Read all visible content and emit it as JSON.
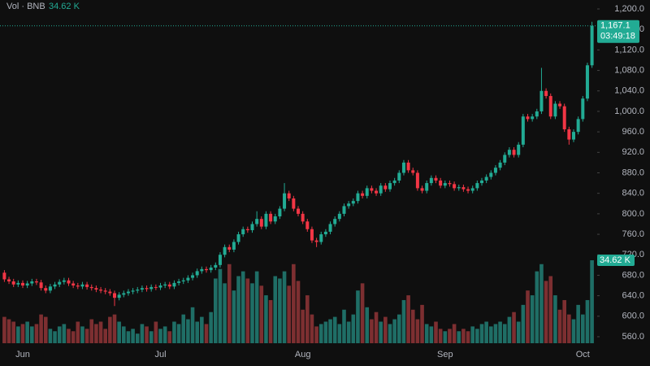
{
  "chart_data": {
    "type": "candlestick",
    "volume_title": "Vol · BNB",
    "volume_label": "34.62 K",
    "last_price_label": "1,167.1",
    "countdown": "03:49:18",
    "up_color": "#22ab94",
    "down_color": "#f23645",
    "up_volume_color": "#1f6e66",
    "down_volume_color": "#7d2f31",
    "categories": [
      null,
      null,
      null,
      null,
      "Jun",
      null,
      null,
      null,
      null,
      null,
      null,
      null,
      null,
      null,
      null,
      null,
      null,
      null,
      null,
      null,
      null,
      null,
      null,
      null,
      null,
      null,
      null,
      null,
      null,
      null,
      null,
      null,
      null,
      null,
      "Jul",
      null,
      null,
      null,
      null,
      null,
      null,
      null,
      null,
      null,
      null,
      null,
      null,
      null,
      null,
      null,
      null,
      null,
      null,
      null,
      null,
      null,
      null,
      null,
      null,
      null,
      null,
      null,
      null,
      null,
      null,
      "Aug",
      null,
      null,
      null,
      null,
      null,
      null,
      null,
      null,
      null,
      null,
      null,
      null,
      null,
      null,
      null,
      null,
      null,
      null,
      null,
      null,
      null,
      null,
      null,
      null,
      null,
      null,
      null,
      null,
      null,
      null,
      "Sep",
      null,
      null,
      null,
      null,
      null,
      null,
      null,
      null,
      null,
      null,
      null,
      null,
      null,
      null,
      null,
      null,
      null,
      null,
      null,
      null,
      null,
      null,
      null,
      null,
      null,
      null,
      null,
      null,
      null,
      "Oct",
      null,
      null
    ],
    "open": [
      685,
      672,
      668,
      662,
      665,
      660,
      664,
      668,
      666,
      655,
      650,
      658,
      662,
      667,
      670,
      664,
      660,
      658,
      662,
      657,
      655,
      652,
      650,
      648,
      645,
      636,
      642,
      645,
      648,
      650,
      652,
      655,
      653,
      657,
      656,
      660,
      662,
      658,
      665,
      668,
      670,
      675,
      680,
      688,
      692,
      690,
      695,
      700,
      720,
      735,
      730,
      745,
      760,
      770,
      768,
      780,
      790,
      775,
      800,
      785,
      795,
      810,
      840,
      830,
      810,
      800,
      785,
      770,
      748,
      745,
      760,
      765,
      780,
      790,
      800,
      815,
      820,
      825,
      840,
      835,
      850,
      845,
      840,
      855,
      848,
      860,
      865,
      880,
      900,
      885,
      880,
      850,
      845,
      860,
      870,
      865,
      855,
      860,
      858,
      850,
      852,
      848,
      845,
      850,
      860,
      865,
      872,
      880,
      890,
      900,
      915,
      925,
      915,
      935,
      990,
      985,
      990,
      1000,
      1040,
      1030,
      990,
      1015,
      1010,
      965,
      945,
      960,
      985,
      1025,
      1090
    ],
    "high": [
      690,
      677,
      673,
      670,
      670,
      669,
      673,
      673,
      671,
      660,
      663,
      667,
      672,
      675,
      675,
      669,
      665,
      667,
      667,
      662,
      660,
      657,
      655,
      653,
      650,
      647,
      650,
      653,
      655,
      657,
      660,
      660,
      662,
      662,
      665,
      667,
      667,
      670,
      673,
      675,
      680,
      685,
      693,
      697,
      697,
      700,
      705,
      725,
      740,
      740,
      750,
      765,
      775,
      775,
      785,
      805,
      795,
      805,
      805,
      800,
      815,
      860,
      845,
      835,
      815,
      805,
      790,
      775,
      753,
      765,
      770,
      785,
      795,
      805,
      820,
      825,
      830,
      845,
      845,
      855,
      855,
      850,
      860,
      860,
      865,
      870,
      885,
      905,
      905,
      890,
      885,
      855,
      865,
      875,
      875,
      870,
      865,
      865,
      863,
      857,
      857,
      853,
      855,
      865,
      870,
      877,
      885,
      895,
      905,
      920,
      930,
      930,
      940,
      995,
      995,
      995,
      1005,
      1085,
      1045,
      1035,
      1020,
      1020,
      1015,
      970,
      965,
      990,
      1030,
      1095,
      1175
    ],
    "low": [
      667,
      663,
      657,
      657,
      655,
      655,
      659,
      661,
      650,
      645,
      645,
      653,
      657,
      662,
      659,
      655,
      653,
      653,
      652,
      650,
      647,
      645,
      643,
      640,
      620,
      631,
      637,
      640,
      643,
      645,
      647,
      648,
      648,
      651,
      651,
      655,
      653,
      653,
      660,
      663,
      665,
      670,
      675,
      683,
      685,
      685,
      690,
      695,
      715,
      725,
      725,
      740,
      755,
      763,
      763,
      775,
      770,
      770,
      780,
      780,
      790,
      805,
      825,
      805,
      795,
      780,
      765,
      743,
      735,
      740,
      755,
      760,
      775,
      785,
      795,
      810,
      815,
      820,
      830,
      830,
      840,
      835,
      835,
      843,
      843,
      855,
      860,
      875,
      880,
      875,
      845,
      840,
      840,
      855,
      860,
      850,
      850,
      853,
      845,
      845,
      843,
      840,
      840,
      845,
      855,
      860,
      867,
      875,
      885,
      895,
      910,
      910,
      910,
      930,
      980,
      980,
      985,
      995,
      1025,
      985,
      985,
      1005,
      960,
      935,
      940,
      955,
      980,
      1020,
      1085
    ],
    "close": [
      672,
      668,
      662,
      665,
      660,
      664,
      668,
      666,
      655,
      650,
      658,
      662,
      667,
      670,
      664,
      660,
      658,
      662,
      657,
      655,
      652,
      650,
      648,
      645,
      636,
      642,
      645,
      648,
      650,
      652,
      655,
      653,
      657,
      656,
      660,
      662,
      658,
      665,
      668,
      670,
      675,
      680,
      688,
      692,
      690,
      695,
      700,
      720,
      735,
      730,
      745,
      760,
      770,
      768,
      780,
      790,
      775,
      800,
      785,
      795,
      810,
      840,
      830,
      810,
      800,
      785,
      770,
      748,
      745,
      760,
      765,
      780,
      790,
      800,
      815,
      820,
      825,
      840,
      835,
      850,
      845,
      840,
      855,
      848,
      860,
      865,
      880,
      900,
      885,
      880,
      850,
      845,
      860,
      870,
      865,
      855,
      860,
      858,
      850,
      852,
      848,
      845,
      850,
      860,
      865,
      872,
      880,
      890,
      900,
      915,
      925,
      915,
      935,
      990,
      985,
      990,
      1000,
      1040,
      1030,
      990,
      1015,
      1010,
      965,
      945,
      960,
      985,
      1025,
      1090,
      1167.1
    ],
    "volume": [
      11,
      10,
      9,
      7,
      8,
      9,
      7,
      8,
      12,
      11,
      6,
      5,
      7,
      8,
      6,
      5,
      9,
      7,
      6,
      10,
      8,
      9,
      6,
      11,
      12,
      9,
      7,
      5,
      6,
      4,
      8,
      7,
      5,
      9,
      6,
      7,
      5,
      9,
      8,
      12,
      10,
      15,
      9,
      11,
      8,
      13,
      27,
      31,
      25,
      33,
      22,
      28,
      30,
      27,
      25,
      30,
      24,
      20,
      18,
      28,
      27,
      30,
      24,
      33,
      26,
      14,
      20,
      12,
      7,
      8,
      9,
      10,
      11,
      8,
      14,
      9,
      12,
      22,
      25,
      15,
      10,
      13,
      9,
      11,
      8,
      10,
      12,
      18,
      20,
      14,
      10,
      16,
      8,
      7,
      9,
      6,
      5,
      6,
      8,
      5,
      6,
      5,
      7,
      6,
      8,
      9,
      7,
      8,
      9,
      8,
      11,
      13,
      9,
      16,
      22,
      20,
      30,
      33,
      26,
      28,
      20,
      14,
      18,
      12,
      10,
      16,
      12,
      18,
      34.62
    ],
    "ylim": [
      542.5,
      1217.5
    ],
    "yticks": [
      {
        "value": 560,
        "label": "560.0"
      },
      {
        "value": 600,
        "label": "600.0"
      },
      {
        "value": 640,
        "label": "640.0"
      },
      {
        "value": 680,
        "label": "680.0"
      },
      {
        "value": 720,
        "label": "720.0"
      },
      {
        "value": 760,
        "label": "760.0"
      },
      {
        "value": 800,
        "label": "800.0"
      },
      {
        "value": 840,
        "label": "840.0"
      },
      {
        "value": 880,
        "label": "880.0"
      },
      {
        "value": 920,
        "label": "920.0"
      },
      {
        "value": 960,
        "label": "960.0"
      },
      {
        "value": 1000,
        "label": "1,000.0"
      },
      {
        "value": 1040,
        "label": "1,040.0"
      },
      {
        "value": 1080,
        "label": "1,080.0"
      },
      {
        "value": 1120,
        "label": "1,120.0"
      },
      {
        "value": 1160,
        "label": "1,160.0"
      },
      {
        "value": 1200,
        "label": "1,200.0"
      }
    ]
  }
}
